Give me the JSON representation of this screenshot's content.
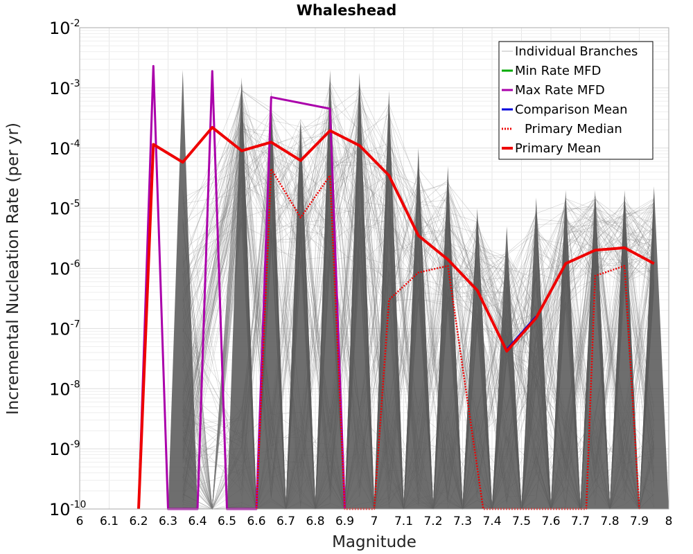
{
  "chart_data": {
    "type": "line",
    "title": "Whaleshead",
    "xlabel": "Magnitude",
    "ylabel": "Incremental Nucleation Rate (per yr)",
    "yscale": "log",
    "xlim": [
      6.0,
      8.0
    ],
    "ylim": [
      1e-10,
      0.01
    ],
    "x_ticks": [
      "6",
      "6.1",
      "6.2",
      "6.3",
      "6.4",
      "6.5",
      "6.6",
      "6.7",
      "6.8",
      "6.9",
      "7",
      "7.1",
      "7.2",
      "7.3",
      "7.4",
      "7.5",
      "7.6",
      "7.7",
      "7.8",
      "7.9",
      "8"
    ],
    "y_ticks": [
      {
        "base": "10",
        "exp": "-10",
        "value": 1e-10
      },
      {
        "base": "10",
        "exp": "-9",
        "value": 1e-09
      },
      {
        "base": "10",
        "exp": "-8",
        "value": 1e-08
      },
      {
        "base": "10",
        "exp": "-7",
        "value": 1e-07
      },
      {
        "base": "10",
        "exp": "-6",
        "value": 1e-06
      },
      {
        "base": "10",
        "exp": "-5",
        "value": 1e-05
      },
      {
        "base": "10",
        "exp": "-4",
        "value": 0.0001
      },
      {
        "base": "10",
        "exp": "-3",
        "value": 0.001
      },
      {
        "base": "10",
        "exp": "-2",
        "value": 0.01
      }
    ],
    "legend_position": "top-right",
    "grid": true,
    "series": [
      {
        "name": "Min Rate MFD",
        "color": "#00aa00",
        "style": "solid",
        "x": [],
        "y": []
      },
      {
        "name": "Max Rate MFD",
        "color": "#aa00aa",
        "style": "solid",
        "x": [
          6.2,
          6.25,
          6.3,
          6.4,
          6.45,
          6.5,
          6.6,
          6.65,
          6.85,
          6.9
        ],
        "y": [
          1e-10,
          0.0023,
          1e-10,
          1e-10,
          0.0019,
          1e-10,
          1e-10,
          0.0007,
          0.00045,
          1e-10
        ]
      },
      {
        "name": "Comparison Mean",
        "color": "#0000dd",
        "style": "solid",
        "x": [
          7.45,
          7.55
        ],
        "y": [
          4.5e-08,
          1.6e-07
        ]
      },
      {
        "name": "Primary Median",
        "color": "#ee0000",
        "style": "dotted",
        "x": [
          6.6,
          6.65,
          6.75,
          6.85,
          6.9,
          7.0,
          7.05,
          7.15,
          7.25,
          7.37,
          7.72,
          7.75,
          7.85,
          7.9
        ],
        "y": [
          1e-10,
          4.5e-05,
          7e-06,
          3.5e-05,
          1e-10,
          1e-10,
          3e-07,
          8.5e-07,
          1.1e-06,
          1e-10,
          1e-10,
          7.5e-07,
          1.1e-06,
          1e-10
        ]
      },
      {
        "name": "Primary Mean",
        "color": "#ee0000",
        "style": "solid",
        "x": [
          6.2,
          6.25,
          6.35,
          6.45,
          6.55,
          6.65,
          6.75,
          6.85,
          6.95,
          7.05,
          7.15,
          7.25,
          7.35,
          7.45,
          7.55,
          7.65,
          7.75,
          7.85,
          7.95
        ],
        "y": [
          1e-10,
          0.000115,
          5.8e-05,
          0.00022,
          9e-05,
          0.000125,
          6.2e-05,
          0.000195,
          0.00011,
          3.5e-05,
          3.5e-06,
          1.4e-06,
          4.3e-07,
          4.2e-08,
          1.5e-07,
          1.2e-06,
          2e-06,
          2.2e-06,
          1.2e-06
        ]
      }
    ],
    "individual_branches": {
      "name": "Individual Branches",
      "color": "#555555",
      "peak_x": [
        6.35,
        6.55,
        6.65,
        6.75,
        6.85,
        6.95,
        7.05,
        7.15,
        7.25,
        7.35,
        7.45,
        7.55,
        7.65,
        7.75,
        7.85,
        7.95
      ],
      "peak_max": [
        0.002,
        0.0015,
        0.0009,
        0.0003,
        0.002,
        0.0018,
        0.0009,
        0.0001,
        5e-05,
        1e-05,
        5e-06,
        1.5e-05,
        2e-05,
        2e-05,
        2e-05,
        2.3e-05
      ],
      "band_low": [
        1e-10,
        5e-06,
        2e-06,
        1e-06,
        1e-06,
        1e-06,
        1e-07,
        3e-07,
        2e-07,
        1e-07,
        3e-08,
        1e-08,
        2e-07,
        5e-07,
        5e-07,
        5e-07
      ],
      "band_high": [
        2e-05,
        0.0012,
        0.0005,
        0.0003,
        0.0015,
        0.0012,
        0.0006,
        5e-05,
        3e-05,
        7e-06,
        2e-06,
        1e-05,
        1.5e-05,
        1.6e-05,
        1.6e-05,
        1.8e-05
      ]
    },
    "legend": [
      "Individual Branches",
      "Min Rate MFD",
      "Max Rate MFD",
      "Comparison Mean",
      "Primary Median",
      "Primary Mean"
    ]
  }
}
